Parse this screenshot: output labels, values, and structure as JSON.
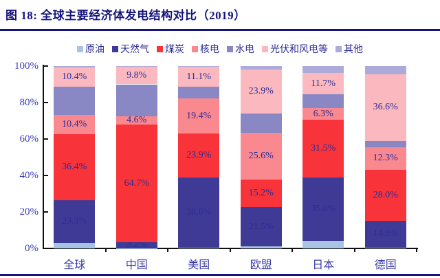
{
  "title": "图 18: 全球主要经济体发电结构对比（2019）",
  "colors": {
    "title": "#14147E",
    "rule": "#14147E",
    "axis": "#111111",
    "tick_label": "#3C3CBE",
    "category_label": "#3A3AA6",
    "data_label": "#2D2D96",
    "legend_label": "#2B2B94",
    "background": "#FFFFFF"
  },
  "chart_data": {
    "type": "bar",
    "stacked": true,
    "unit": "%",
    "title": "全球主要经济体发电结构对比（2019）",
    "categories": [
      "全球",
      "中国",
      "美国",
      "欧盟",
      "日本",
      "德国"
    ],
    "series": [
      {
        "name": "原油",
        "color": "#A7C4E4",
        "labeled": false,
        "values": [
          3.1,
          0.1,
          0.4,
          1.0,
          4.0,
          0.3
        ]
      },
      {
        "name": "天然气",
        "color": "#3F3A95",
        "labeled": true,
        "values": [
          23.3,
          3.2,
          38.6,
          21.5,
          35.0,
          14.9
        ]
      },
      {
        "name": "煤炭",
        "color": "#F8333A",
        "labeled": true,
        "values": [
          36.4,
          64.7,
          23.9,
          15.2,
          31.5,
          28.0
        ]
      },
      {
        "name": "核电",
        "color": "#F9888F",
        "labeled": true,
        "values": [
          10.4,
          4.6,
          19.4,
          25.6,
          6.3,
          12.3
        ]
      },
      {
        "name": "水电",
        "color": "#8987C4",
        "labeled": false,
        "values": [
          15.6,
          17.4,
          6.2,
          10.8,
          7.6,
          3.4
        ]
      },
      {
        "name": "光伏和风电等",
        "color": "#FBB9BF",
        "labeled": true,
        "values": [
          10.4,
          9.8,
          11.1,
          23.9,
          11.7,
          36.6
        ]
      },
      {
        "name": "其他",
        "color": "#ABAAD9",
        "labeled": false,
        "values": [
          0.8,
          0.2,
          0.4,
          2.0,
          3.9,
          4.5
        ]
      }
    ],
    "y_ticks": [
      "0%",
      "20%",
      "40%",
      "60%",
      "80%",
      "100%"
    ],
    "ylim": [
      0,
      100
    ],
    "grid": false,
    "legend_position": "top",
    "label_format": "percent_one_decimal"
  }
}
